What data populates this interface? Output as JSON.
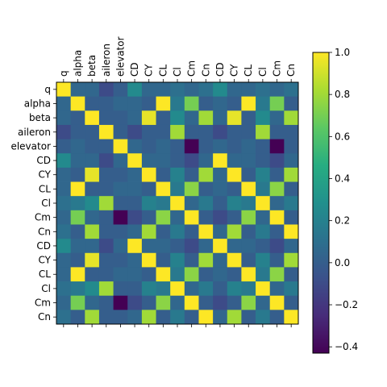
{
  "chart_data": {
    "type": "heatmap",
    "title": "",
    "xlabel": "",
    "ylabel": "",
    "labels": [
      "q",
      "alpha",
      "beta",
      "aileron",
      "elevator",
      "CD",
      "CY",
      "CL",
      "Cl",
      "Cm",
      "Cn",
      "CD",
      "CY",
      "CL",
      "Cl",
      "Cm",
      "Cn"
    ],
    "colorbar": {
      "vmin": -0.43,
      "vmax": 1.0,
      "ticks": [
        -0.4,
        -0.2,
        0.0,
        0.2,
        0.4,
        0.6,
        0.8,
        1.0
      ],
      "tick_labels": [
        "−0.4",
        "−0.2",
        "0.0",
        "0.2",
        "0.4",
        "0.6",
        "0.8",
        "1.0"
      ],
      "colormap": "viridis"
    },
    "matrix": [
      [
        1.0,
        0.05,
        0.05,
        -0.1,
        0.0,
        0.25,
        0.05,
        0.05,
        0.1,
        0.05,
        0.1,
        0.25,
        0.05,
        0.05,
        0.1,
        0.05,
        0.1
      ],
      [
        0.05,
        1.0,
        0.0,
        0.0,
        0.05,
        0.05,
        0.0,
        1.0,
        0.15,
        0.7,
        0.0,
        0.05,
        0.0,
        1.0,
        0.15,
        0.7,
        0.0
      ],
      [
        0.05,
        0.0,
        1.0,
        0.0,
        0.0,
        0.05,
        0.95,
        0.0,
        0.25,
        0.05,
        0.8,
        0.05,
        0.95,
        0.0,
        0.25,
        0.05,
        0.8
      ],
      [
        -0.1,
        0.0,
        0.0,
        1.0,
        0.0,
        -0.1,
        0.0,
        0.0,
        0.8,
        0.0,
        0.0,
        -0.1,
        0.0,
        0.0,
        0.8,
        0.0,
        0.0
      ],
      [
        0.0,
        0.05,
        0.0,
        0.0,
        1.0,
        0.05,
        0.0,
        0.05,
        0.0,
        -0.43,
        0.0,
        0.05,
        0.0,
        0.05,
        0.0,
        -0.43,
        0.0
      ],
      [
        0.25,
        0.05,
        0.05,
        -0.1,
        0.05,
        1.0,
        0.05,
        0.05,
        0.0,
        -0.1,
        0.05,
        1.0,
        0.05,
        0.05,
        0.0,
        -0.1,
        0.05
      ],
      [
        0.05,
        0.0,
        0.95,
        0.0,
        0.0,
        0.05,
        1.0,
        0.0,
        0.2,
        0.0,
        0.8,
        0.05,
        1.0,
        0.0,
        0.2,
        0.0,
        0.8
      ],
      [
        0.05,
        1.0,
        0.0,
        0.0,
        0.05,
        0.05,
        0.0,
        1.0,
        0.15,
        0.75,
        0.0,
        0.05,
        0.0,
        1.0,
        0.15,
        0.75,
        0.0
      ],
      [
        0.1,
        0.15,
        0.25,
        0.8,
        0.0,
        0.0,
        0.2,
        0.15,
        1.0,
        0.05,
        0.15,
        0.0,
        0.2,
        0.15,
        1.0,
        0.05,
        0.15
      ],
      [
        0.05,
        0.7,
        0.05,
        0.0,
        -0.43,
        -0.1,
        0.0,
        0.75,
        0.05,
        1.0,
        0.0,
        -0.1,
        0.0,
        0.75,
        0.05,
        1.0,
        0.0
      ],
      [
        0.1,
        0.0,
        0.8,
        0.0,
        0.0,
        0.05,
        0.8,
        0.0,
        0.15,
        0.0,
        1.0,
        0.05,
        0.8,
        0.0,
        0.15,
        0.0,
        1.0
      ],
      [
        0.25,
        0.05,
        0.05,
        -0.1,
        0.05,
        1.0,
        0.05,
        0.05,
        0.0,
        -0.1,
        0.05,
        1.0,
        0.05,
        0.05,
        0.0,
        -0.1,
        0.05
      ],
      [
        0.05,
        0.0,
        0.95,
        0.0,
        0.0,
        0.05,
        1.0,
        0.0,
        0.2,
        0.0,
        0.8,
        0.05,
        1.0,
        0.0,
        0.2,
        0.0,
        0.8
      ],
      [
        0.05,
        1.0,
        0.0,
        0.0,
        0.05,
        0.05,
        0.0,
        1.0,
        0.15,
        0.75,
        0.0,
        0.05,
        0.0,
        1.0,
        0.15,
        0.75,
        0.0
      ],
      [
        0.1,
        0.15,
        0.25,
        0.8,
        0.0,
        0.0,
        0.2,
        0.15,
        1.0,
        0.05,
        0.15,
        0.0,
        0.2,
        0.15,
        1.0,
        0.05,
        0.15
      ],
      [
        0.05,
        0.7,
        0.05,
        0.0,
        -0.43,
        -0.1,
        0.0,
        0.75,
        0.05,
        1.0,
        0.0,
        -0.1,
        0.0,
        0.75,
        0.05,
        1.0,
        0.0
      ],
      [
        0.1,
        0.0,
        0.8,
        0.0,
        0.0,
        0.05,
        0.8,
        0.0,
        0.15,
        0.0,
        1.0,
        0.05,
        0.8,
        0.0,
        0.15,
        0.0,
        1.0
      ]
    ]
  }
}
